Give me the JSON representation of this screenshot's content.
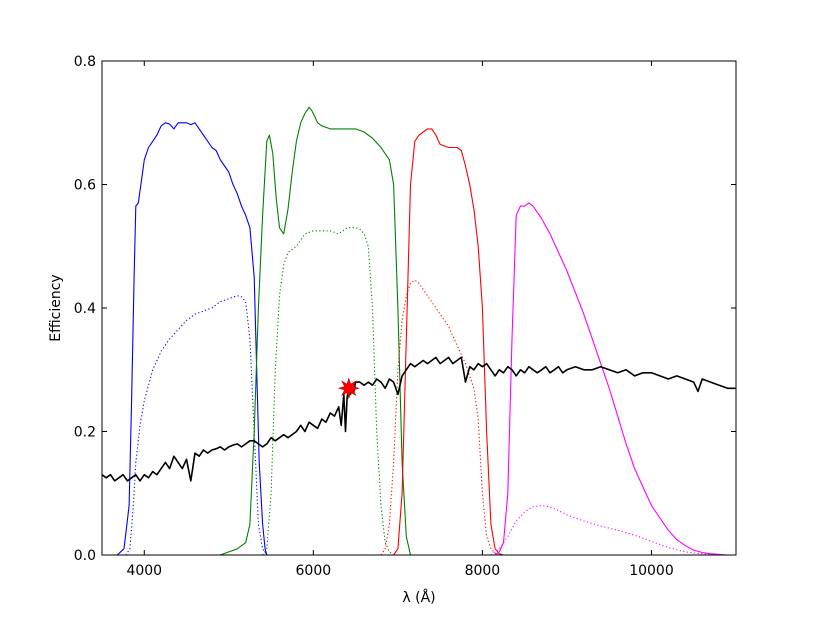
{
  "chart_data": {
    "type": "line",
    "title": "",
    "xlabel": "λ (Å)",
    "ylabel": "Efficiency",
    "xlim": [
      3500,
      11000
    ],
    "ylim": [
      0,
      0.8
    ],
    "xticks": [
      4000,
      6000,
      8000,
      10000
    ],
    "xtick_labels": [
      "4000",
      "6000",
      "8000",
      "10000"
    ],
    "yticks": [
      0.0,
      0.2,
      0.4,
      0.6,
      0.8
    ],
    "ytick_labels": [
      "0.0",
      "0.2",
      "0.4",
      "0.6",
      "0.8"
    ],
    "grid": false,
    "legend": "none",
    "series": [
      {
        "color": "#0000ff",
        "style": "solid",
        "x": [
          3680,
          3760,
          3820,
          3850,
          3880,
          3900,
          3930,
          3960,
          4000,
          4050,
          4100,
          4150,
          4200,
          4250,
          4300,
          4350,
          4400,
          4500,
          4550,
          4600,
          4650,
          4700,
          4750,
          4800,
          4850,
          4900,
          4950,
          5000,
          5050,
          5100,
          5150,
          5200,
          5250,
          5300,
          5330,
          5360,
          5400,
          5430,
          5450
        ],
        "y": [
          0,
          0.01,
          0.08,
          0.25,
          0.45,
          0.565,
          0.57,
          0.6,
          0.64,
          0.66,
          0.67,
          0.68,
          0.695,
          0.7,
          0.698,
          0.69,
          0.7,
          0.7,
          0.697,
          0.7,
          0.69,
          0.68,
          0.67,
          0.66,
          0.655,
          0.64,
          0.63,
          0.62,
          0.6,
          0.585,
          0.565,
          0.55,
          0.53,
          0.45,
          0.3,
          0.15,
          0.05,
          0.01,
          0
        ]
      },
      {
        "color": "#0000ff",
        "style": "dotted",
        "x": [
          3780,
          3830,
          3870,
          3900,
          3950,
          4000,
          4100,
          4200,
          4300,
          4400,
          4500,
          4600,
          4700,
          4800,
          4900,
          5000,
          5100,
          5150,
          5200,
          5250,
          5300,
          5350,
          5400,
          5450
        ],
        "y": [
          0,
          0.01,
          0.08,
          0.15,
          0.21,
          0.25,
          0.3,
          0.33,
          0.35,
          0.365,
          0.38,
          0.39,
          0.395,
          0.4,
          0.41,
          0.415,
          0.42,
          0.418,
          0.41,
          0.35,
          0.2,
          0.05,
          0.01,
          0
        ]
      },
      {
        "color": "#008000",
        "style": "solid",
        "x": [
          4900,
          5000,
          5100,
          5200,
          5250,
          5300,
          5350,
          5400,
          5450,
          5480,
          5520,
          5560,
          5600,
          5650,
          5700,
          5750,
          5800,
          5850,
          5900,
          5950,
          5980,
          6000,
          6050,
          6100,
          6200,
          6300,
          6400,
          6500,
          6600,
          6700,
          6800,
          6900,
          6950,
          7000,
          7050,
          7100,
          7150
        ],
        "y": [
          0,
          0.005,
          0.01,
          0.02,
          0.05,
          0.2,
          0.4,
          0.55,
          0.67,
          0.68,
          0.65,
          0.58,
          0.53,
          0.52,
          0.56,
          0.62,
          0.67,
          0.7,
          0.715,
          0.725,
          0.72,
          0.715,
          0.7,
          0.695,
          0.69,
          0.69,
          0.69,
          0.69,
          0.685,
          0.675,
          0.66,
          0.64,
          0.6,
          0.4,
          0.15,
          0.03,
          0
        ]
      },
      {
        "color": "#008000",
        "style": "dotted",
        "x": [
          5400,
          5450,
          5500,
          5550,
          5600,
          5650,
          5700,
          5800,
          5900,
          6000,
          6100,
          6200,
          6300,
          6400,
          6500,
          6550,
          6600,
          6650,
          6700,
          6750,
          6800,
          6850,
          6900,
          6950
        ],
        "y": [
          0,
          0.01,
          0.1,
          0.3,
          0.42,
          0.47,
          0.49,
          0.5,
          0.52,
          0.525,
          0.525,
          0.525,
          0.52,
          0.53,
          0.53,
          0.528,
          0.52,
          0.5,
          0.4,
          0.2,
          0.08,
          0.02,
          0.005,
          0
        ]
      },
      {
        "color": "#ff0000",
        "style": "solid",
        "x": [
          6950,
          7000,
          7050,
          7100,
          7150,
          7200,
          7250,
          7300,
          7350,
          7400,
          7450,
          7500,
          7600,
          7700,
          7750,
          7800,
          7850,
          7900,
          7950,
          8000,
          8050,
          8100,
          8150,
          8200,
          8250
        ],
        "y": [
          0,
          0.01,
          0.1,
          0.35,
          0.6,
          0.67,
          0.68,
          0.685,
          0.69,
          0.69,
          0.68,
          0.665,
          0.66,
          0.66,
          0.655,
          0.63,
          0.6,
          0.56,
          0.5,
          0.4,
          0.2,
          0.05,
          0.01,
          0.002,
          0
        ]
      },
      {
        "color": "#ff0000",
        "style": "dotted",
        "x": [
          6800,
          6850,
          6900,
          6950,
          7000,
          7050,
          7100,
          7150,
          7200,
          7250,
          7300,
          7400,
          7500,
          7600,
          7700,
          7800,
          7900,
          7950,
          8000,
          8050,
          8100,
          8150,
          8200
        ],
        "y": [
          0,
          0.01,
          0.05,
          0.15,
          0.3,
          0.38,
          0.42,
          0.44,
          0.445,
          0.44,
          0.43,
          0.41,
          0.39,
          0.37,
          0.34,
          0.31,
          0.27,
          0.22,
          0.1,
          0.03,
          0.01,
          0.003,
          0
        ]
      },
      {
        "color": "#ff00ff",
        "style": "solid",
        "x": [
          8150,
          8200,
          8250,
          8300,
          8350,
          8400,
          8450,
          8500,
          8550,
          8600,
          8650,
          8700,
          8800,
          8900,
          9000,
          9100,
          9200,
          9300,
          9400,
          9500,
          9600,
          9700,
          9800,
          9900,
          10000,
          10100,
          10200,
          10300,
          10400,
          10500,
          10600,
          10700,
          10800,
          10900,
          11000
        ],
        "y": [
          0,
          0.005,
          0.02,
          0.1,
          0.35,
          0.55,
          0.565,
          0.565,
          0.57,
          0.565,
          0.555,
          0.545,
          0.52,
          0.49,
          0.46,
          0.425,
          0.39,
          0.35,
          0.31,
          0.27,
          0.225,
          0.18,
          0.14,
          0.11,
          0.08,
          0.06,
          0.04,
          0.025,
          0.015,
          0.008,
          0.004,
          0.002,
          0.001,
          0,
          0
        ]
      },
      {
        "color": "#ff00ff",
        "style": "dotted",
        "x": [
          8100,
          8200,
          8300,
          8400,
          8500,
          8600,
          8700,
          8800,
          8900,
          9000,
          9200,
          9400,
          9600,
          9800,
          10000,
          10200,
          10400,
          10600,
          10800,
          11000
        ],
        "y": [
          0,
          0.01,
          0.03,
          0.055,
          0.07,
          0.078,
          0.08,
          0.078,
          0.072,
          0.065,
          0.055,
          0.047,
          0.04,
          0.032,
          0.022,
          0.012,
          0.005,
          0.002,
          0,
          0
        ]
      },
      {
        "color": "#000000",
        "style": "solid",
        "x": [
          3500,
          3550,
          3600,
          3650,
          3700,
          3750,
          3800,
          3850,
          3900,
          3950,
          4000,
          4050,
          4100,
          4150,
          4200,
          4250,
          4300,
          4350,
          4400,
          4450,
          4500,
          4550,
          4600,
          4650,
          4700,
          4750,
          4800,
          4850,
          4900,
          4950,
          5000,
          5050,
          5100,
          5150,
          5200,
          5250,
          5300,
          5350,
          5400,
          5450,
          5500,
          5550,
          5600,
          5650,
          5700,
          5750,
          5800,
          5850,
          5900,
          5950,
          6000,
          6050,
          6100,
          6150,
          6200,
          6250,
          6300,
          6330,
          6360,
          6380,
          6400,
          6420,
          6440,
          6460,
          6480,
          6500,
          6550,
          6600,
          6650,
          6700,
          6750,
          6800,
          6850,
          6900,
          6950,
          7000,
          7050,
          7100,
          7150,
          7200,
          7250,
          7300,
          7350,
          7400,
          7450,
          7500,
          7550,
          7600,
          7650,
          7700,
          7750,
          7800,
          7850,
          7900,
          7950,
          8000,
          8050,
          8100,
          8150,
          8200,
          8250,
          8300,
          8350,
          8400,
          8450,
          8500,
          8550,
          8600,
          8650,
          8700,
          8750,
          8800,
          8850,
          8900,
          8950,
          9000,
          9100,
          9200,
          9300,
          9400,
          9500,
          9600,
          9700,
          9800,
          9900,
          10000,
          10100,
          10200,
          10300,
          10400,
          10500,
          10550,
          10600,
          10700,
          10800,
          10900,
          11000
        ],
        "y": [
          0.13,
          0.125,
          0.13,
          0.12,
          0.125,
          0.13,
          0.12,
          0.125,
          0.13,
          0.12,
          0.13,
          0.125,
          0.135,
          0.13,
          0.14,
          0.15,
          0.14,
          0.16,
          0.15,
          0.14,
          0.155,
          0.12,
          0.165,
          0.16,
          0.17,
          0.165,
          0.17,
          0.172,
          0.175,
          0.17,
          0.175,
          0.178,
          0.18,
          0.175,
          0.18,
          0.185,
          0.185,
          0.18,
          0.175,
          0.18,
          0.19,
          0.185,
          0.19,
          0.195,
          0.19,
          0.195,
          0.2,
          0.21,
          0.2,
          0.215,
          0.21,
          0.205,
          0.22,
          0.215,
          0.23,
          0.225,
          0.24,
          0.21,
          0.26,
          0.2,
          0.255,
          0.27,
          0.26,
          0.275,
          0.265,
          0.28,
          0.28,
          0.275,
          0.28,
          0.275,
          0.285,
          0.28,
          0.27,
          0.285,
          0.28,
          0.26,
          0.29,
          0.3,
          0.31,
          0.305,
          0.31,
          0.315,
          0.31,
          0.315,
          0.32,
          0.31,
          0.315,
          0.32,
          0.31,
          0.315,
          0.32,
          0.28,
          0.305,
          0.3,
          0.31,
          0.305,
          0.31,
          0.3,
          0.29,
          0.3,
          0.295,
          0.305,
          0.3,
          0.29,
          0.3,
          0.295,
          0.305,
          0.3,
          0.295,
          0.3,
          0.305,
          0.295,
          0.3,
          0.305,
          0.295,
          0.3,
          0.305,
          0.3,
          0.3,
          0.305,
          0.3,
          0.295,
          0.3,
          0.29,
          0.295,
          0.295,
          0.29,
          0.285,
          0.29,
          0.285,
          0.28,
          0.265,
          0.285,
          0.28,
          0.275,
          0.27,
          0.27
        ]
      }
    ],
    "marker": {
      "x": 6420,
      "y": 0.27,
      "color": "#ff0000",
      "shape": "star"
    }
  }
}
